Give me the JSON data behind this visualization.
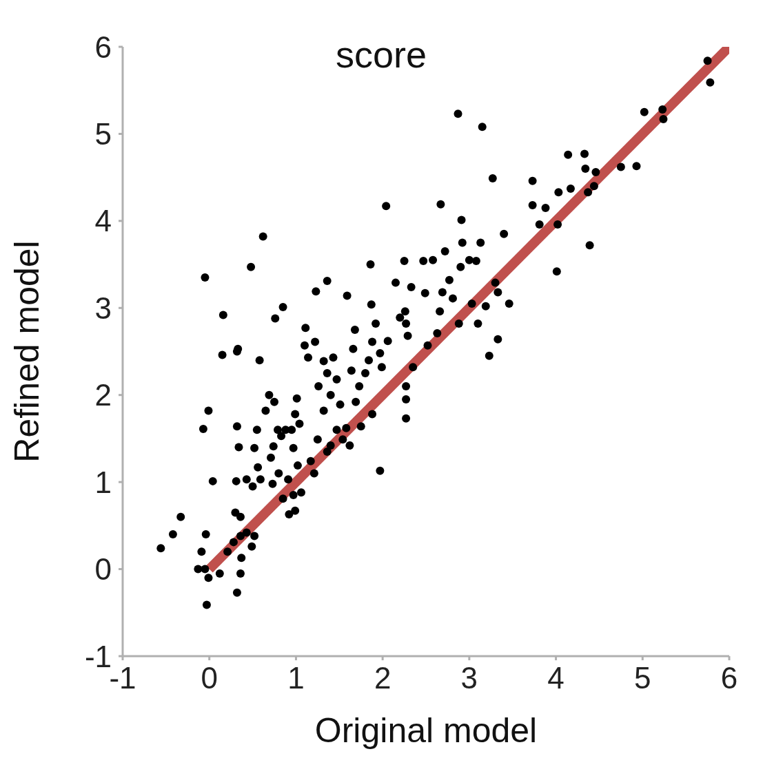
{
  "chart_data": {
    "type": "scatter",
    "title": "score",
    "xlabel": "Original model",
    "ylabel": "Refined model",
    "xlim": [
      -1,
      6
    ],
    "xticks": [
      -1,
      0,
      1,
      2,
      3,
      4,
      5,
      6
    ],
    "ylim": [
      -1,
      6
    ],
    "yticks": [
      -1,
      0,
      1,
      2,
      3,
      4,
      5,
      6
    ],
    "grid": false,
    "series": [
      {
        "marker": "circle",
        "color": "#000000",
        "x": [
          -0.05,
          0.16,
          0.15,
          0.32,
          0.33,
          -0.01,
          -0.07,
          0.04,
          -0.33,
          -0.42,
          -0.56,
          -0.05,
          -0.13,
          -0.01,
          0.32,
          -0.03,
          0.36,
          0.12,
          -0.04,
          -0.09,
          0.21,
          0.28,
          0.36,
          0.43,
          0.52,
          0.49,
          0.37,
          0.3,
          0.36,
          0.31,
          0.34,
          0.32,
          0.48,
          0.62,
          0.58,
          0.69,
          0.65,
          0.55,
          0.52,
          0.56,
          0.43,
          0.5,
          0.59,
          0.73,
          0.76,
          0.85,
          0.75,
          0.79,
          0.83,
          0.74,
          0.71,
          0.8,
          0.85,
          0.91,
          0.97,
          0.99,
          1.01,
          0.95,
          0.88,
          1.04,
          1.1,
          1.11,
          1.02,
          0.97,
          1.06,
          0.92,
          0.99,
          1.17,
          1.21,
          1.25,
          1.23,
          1.36,
          1.22,
          1.14,
          1.32,
          1.26,
          1.36,
          1.43,
          1.47,
          1.4,
          1.32,
          1.51,
          1.47,
          1.4,
          1.58,
          1.36,
          1.62,
          1.54,
          1.59,
          1.68,
          1.66,
          1.64,
          1.73,
          1.69,
          1.8,
          1.84,
          1.88,
          1.92,
          1.87,
          1.86,
          1.75,
          1.88,
          1.97,
          1.99,
          2.06,
          2.04,
          1.97,
          2.15,
          2.2,
          2.25,
          2.26,
          2.27,
          2.29,
          2.27,
          2.27,
          2.27,
          2.35,
          2.33,
          2.47,
          2.49,
          2.52,
          2.58,
          2.63,
          2.66,
          2.69,
          2.67,
          2.72,
          2.77,
          2.81,
          2.88,
          2.9,
          2.91,
          2.92,
          2.87,
          3.0,
          3.03,
          3.08,
          3.1,
          3.13,
          3.15,
          3.19,
          3.23,
          3.27,
          3.3,
          3.33,
          3.33,
          3.4,
          3.46,
          3.73,
          3.73,
          3.81,
          3.88,
          4.01,
          4.02,
          4.03,
          4.14,
          4.17,
          4.33,
          4.34,
          4.39,
          4.37,
          4.44,
          4.46,
          4.75,
          4.93,
          5.02,
          5.23,
          5.24,
          5.75,
          5.78
        ],
        "values": [
          3.35,
          2.92,
          2.46,
          2.5,
          2.53,
          1.82,
          1.61,
          1.01,
          0.6,
          0.4,
          0.24,
          0.0,
          0.0,
          -0.1,
          -0.27,
          -0.41,
          -0.05,
          -0.05,
          0.4,
          0.2,
          0.2,
          0.31,
          0.38,
          0.42,
          0.38,
          0.26,
          0.13,
          0.65,
          0.6,
          1.01,
          1.4,
          1.64,
          3.47,
          3.82,
          2.4,
          2.0,
          1.82,
          1.6,
          1.39,
          1.17,
          1.03,
          0.95,
          1.03,
          0.98,
          2.88,
          3.01,
          1.92,
          1.6,
          1.53,
          1.41,
          1.28,
          1.1,
          0.81,
          1.03,
          1.39,
          1.78,
          1.96,
          1.6,
          1.6,
          1.67,
          2.57,
          2.77,
          1.19,
          0.85,
          0.88,
          0.63,
          0.67,
          1.24,
          1.1,
          1.49,
          3.19,
          3.31,
          2.61,
          2.43,
          2.39,
          2.1,
          2.25,
          2.43,
          2.18,
          2.0,
          1.82,
          1.89,
          1.6,
          1.42,
          1.62,
          1.35,
          1.42,
          1.49,
          3.14,
          2.75,
          2.53,
          2.28,
          2.1,
          1.92,
          2.25,
          2.4,
          2.61,
          2.82,
          3.04,
          3.5,
          1.64,
          1.78,
          2.48,
          2.32,
          2.62,
          4.17,
          1.13,
          3.29,
          2.89,
          3.54,
          2.96,
          2.82,
          2.68,
          2.1,
          1.95,
          1.73,
          2.32,
          3.24,
          3.54,
          3.17,
          2.57,
          3.55,
          2.71,
          2.96,
          3.18,
          4.19,
          3.65,
          3.32,
          3.11,
          2.82,
          3.47,
          4.01,
          3.75,
          5.23,
          3.55,
          3.05,
          3.54,
          2.82,
          3.75,
          5.08,
          3.02,
          2.45,
          4.49,
          3.29,
          2.64,
          3.18,
          3.85,
          3.05,
          4.46,
          4.18,
          3.96,
          4.15,
          3.42,
          3.96,
          4.33,
          4.76,
          4.37,
          4.77,
          4.6,
          3.72,
          4.33,
          4.4,
          4.56,
          4.62,
          4.63,
          5.25,
          5.28,
          5.17,
          5.84,
          5.59
        ]
      },
      {
        "type": "line",
        "marker": "none",
        "color": "#c0504d",
        "x": [
          0,
          6
        ],
        "values": [
          0,
          6
        ]
      }
    ]
  }
}
